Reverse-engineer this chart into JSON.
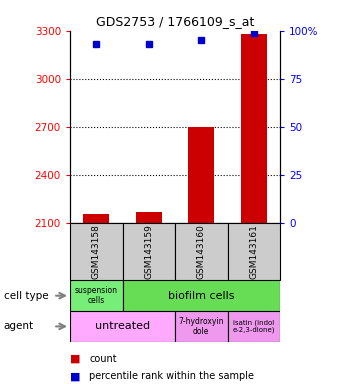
{
  "title": "GDS2753 / 1766109_s_at",
  "samples": [
    "GSM143158",
    "GSM143159",
    "GSM143160",
    "GSM143161"
  ],
  "bar_values": [
    2155,
    2165,
    2700,
    3280
  ],
  "bar_bottom": 2100,
  "percentile_values": [
    93,
    93,
    95,
    99
  ],
  "ylim_left": [
    2100,
    3300
  ],
  "ylim_right": [
    0,
    100
  ],
  "yticks_left": [
    2100,
    2400,
    2700,
    3000,
    3300
  ],
  "yticks_right": [
    0,
    25,
    50,
    75,
    100
  ],
  "bar_color": "#cc0000",
  "dot_color": "#0000cc",
  "sample_box_color": "#cccccc",
  "suspension_color": "#77ee77",
  "biofilm_color": "#66dd55",
  "agent_color1": "#ffaaff",
  "agent_color2": "#ee99ee",
  "legend_count_color": "#cc0000",
  "legend_pct_color": "#0000cc",
  "gridline_ticks": [
    3000,
    2700,
    2400
  ],
  "bar_width": 0.5
}
